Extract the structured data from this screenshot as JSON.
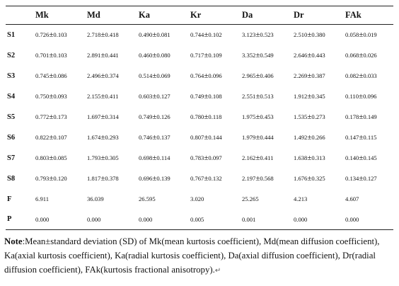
{
  "table": {
    "columns": [
      "",
      "Mk",
      "Md",
      "Ka",
      "Kr",
      "Da",
      "Dr",
      "FAk"
    ],
    "rows": [
      {
        "label": "S1",
        "cells": [
          [
            "0.726",
            "0.103"
          ],
          [
            "2.718",
            "0.418"
          ],
          [
            "0.490",
            "0.081"
          ],
          [
            "0.744",
            "0.102"
          ],
          [
            "3.123",
            "0.523"
          ],
          [
            "2.510",
            "0.380"
          ],
          [
            "0.058",
            "0.019"
          ]
        ]
      },
      {
        "label": "S2",
        "cells": [
          [
            "0.701",
            "0.103"
          ],
          [
            "2.891",
            "0.441"
          ],
          [
            "0.460",
            "0.080"
          ],
          [
            "0.717",
            "0.109"
          ],
          [
            "3.352",
            "0.549"
          ],
          [
            "2.646",
            "0.443"
          ],
          [
            "0.068",
            "0.026"
          ]
        ]
      },
      {
        "label": "S3",
        "cells": [
          [
            "0.745",
            "0.086"
          ],
          [
            "2.496",
            "0.374"
          ],
          [
            "0.514",
            "0.069"
          ],
          [
            "0.764",
            "0.096"
          ],
          [
            "2.965",
            "0.406"
          ],
          [
            "2.269",
            "0.387"
          ],
          [
            "0.082",
            "0.033"
          ]
        ]
      },
      {
        "label": "S4",
        "cells": [
          [
            "0.750",
            "0.093"
          ],
          [
            "2.155",
            "0.411"
          ],
          [
            "0.603",
            "0.127"
          ],
          [
            "0.749",
            "0.108"
          ],
          [
            "2.551",
            "0.513"
          ],
          [
            "1.912",
            "0.345"
          ],
          [
            "0.110",
            "0.096"
          ]
        ]
      },
      {
        "label": "S5",
        "cells": [
          [
            "0.772",
            "0.173"
          ],
          [
            "1.697",
            "0.314"
          ],
          [
            "0.749",
            "0.126"
          ],
          [
            "0.780",
            "0.118"
          ],
          [
            "1.975",
            "0.453"
          ],
          [
            "1.535",
            "0.273"
          ],
          [
            "0.178",
            "0.149"
          ]
        ]
      },
      {
        "label": "S6",
        "cells": [
          [
            "0.822",
            "0.107"
          ],
          [
            "1.674",
            "0.293"
          ],
          [
            "0.746",
            "0.137"
          ],
          [
            "0.807",
            "0.144"
          ],
          [
            "1.979",
            "0.444"
          ],
          [
            "1.492",
            "0.266"
          ],
          [
            "0.147",
            "0.115"
          ]
        ]
      },
      {
        "label": "S7",
        "cells": [
          [
            "0.803",
            "0.085"
          ],
          [
            "1.793",
            "0.305"
          ],
          [
            "0.698",
            "0.114"
          ],
          [
            "0.783",
            "0.097"
          ],
          [
            "2.162",
            "0.411"
          ],
          [
            "1.638",
            "0.313"
          ],
          [
            "0.140",
            "0.145"
          ]
        ]
      },
      {
        "label": "S8",
        "cells": [
          [
            "0.793",
            "0.120"
          ],
          [
            "1.817",
            "0.378"
          ],
          [
            "0.696",
            "0.139"
          ],
          [
            "0.767",
            "0.132"
          ],
          [
            "2.197",
            "0.568"
          ],
          [
            "1.676",
            "0.325"
          ],
          [
            "0.134",
            "0.127"
          ]
        ]
      },
      {
        "label": "F",
        "cells": [
          [
            "6.911"
          ],
          [
            "36.039"
          ],
          [
            "26.595"
          ],
          [
            "3.020"
          ],
          [
            "25.265"
          ],
          [
            "4.213"
          ],
          [
            "4.607"
          ]
        ]
      },
      {
        "label": "P",
        "cells": [
          [
            "0.000"
          ],
          [
            "0.000"
          ],
          [
            "0.000"
          ],
          [
            "0.005"
          ],
          [
            "0.001"
          ],
          [
            "0.000"
          ],
          [
            "0.000"
          ]
        ]
      }
    ]
  },
  "note": {
    "label": "Note",
    "text": ":Mean±standard deviation (SD) of Mk(mean kurtosis coefficient), Md(mean diffusion coefficient), Ka(axial kurtosis coefficient), Ka(radial kurtosis coefficient), Da(axial diffusion coefficient), Dr(radial diffusion coefficient), FAk(kurtosis fractional anisotropy).",
    "return_mark": "↵"
  }
}
